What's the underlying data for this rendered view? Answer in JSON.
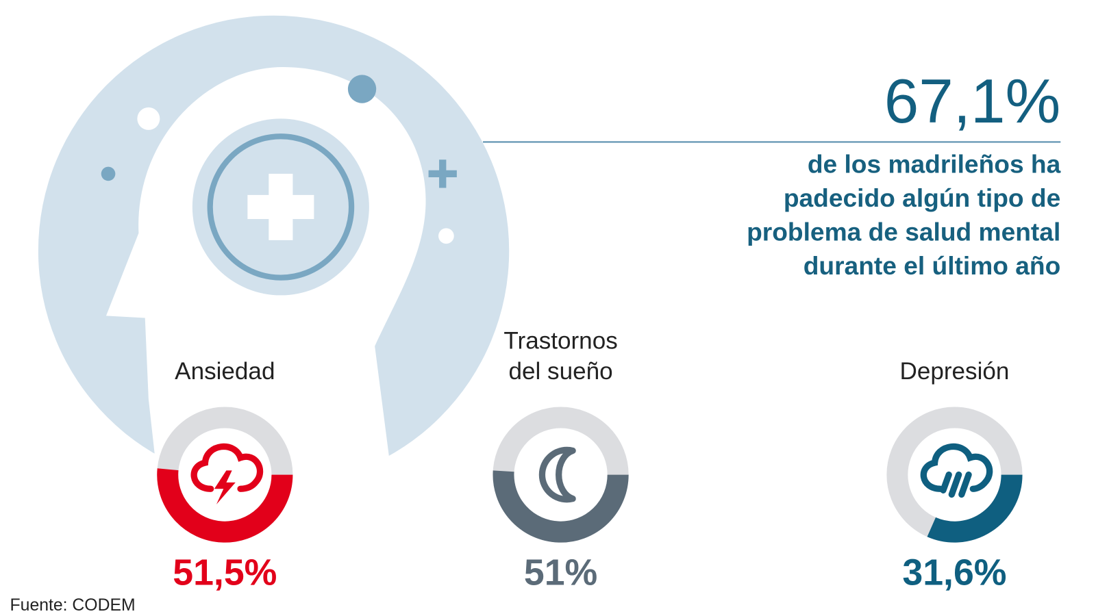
{
  "headline": "67,1%",
  "description": [
    "de los madrileños ha",
    "padecido algún tipo de",
    "problema de salud mental",
    "durante el último año"
  ],
  "chart_data": {
    "type": "donut",
    "categories": [
      "Ansiedad",
      "Trastornos del sueño",
      "Depresión"
    ],
    "values": [
      51.5,
      51,
      31.6
    ],
    "value_labels": [
      "51,5%",
      "51%",
      "31,6%"
    ],
    "colors": [
      "#e2001a",
      "#5b6b78",
      "#0f5f80"
    ],
    "track_color": "#dcdde0",
    "ylim": [
      0,
      100
    ]
  },
  "source": "Fuente: CODEM"
}
